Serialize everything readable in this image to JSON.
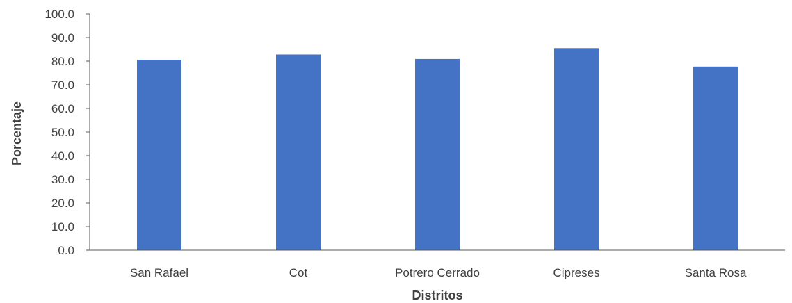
{
  "chart_data": {
    "type": "bar",
    "categories": [
      "San Rafael",
      "Cot",
      "Potrero Cerrado",
      "Cipreses",
      "Santa Rosa"
    ],
    "values": [
      80.6,
      82.8,
      80.9,
      85.5,
      77.7
    ],
    "xlabel": "Distritos",
    "ylabel": "Porcentaje",
    "ylim": [
      0,
      100
    ],
    "ytick_step": 10,
    "ytick_labels": [
      "0.0",
      "10.0",
      "20.0",
      "30.0",
      "40.0",
      "50.0",
      "60.0",
      "70.0",
      "80.0",
      "90.0",
      "100.0"
    ],
    "grid": false,
    "legend": "none",
    "bar_color": "#4472C4"
  }
}
